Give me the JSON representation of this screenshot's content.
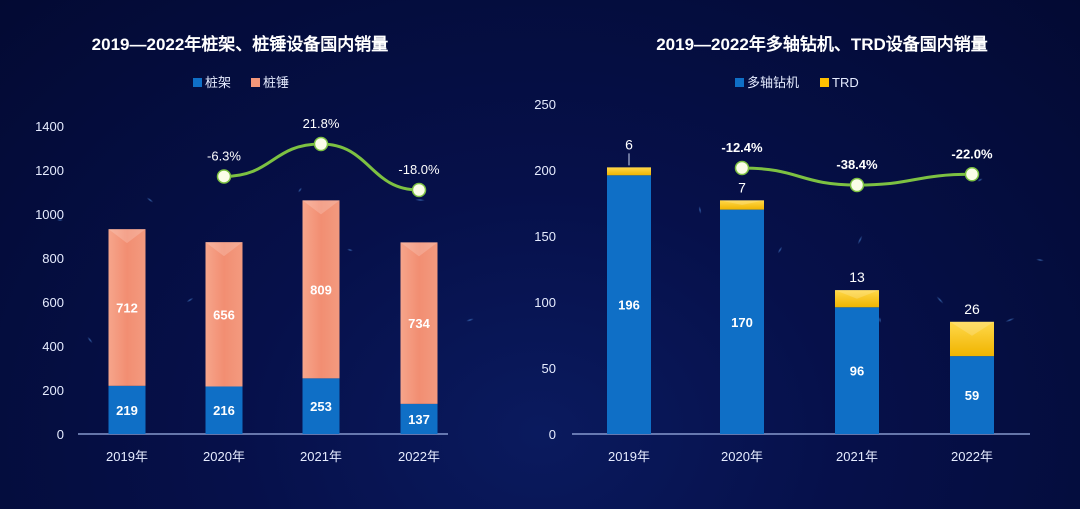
{
  "chart_data": [
    {
      "type": "bar",
      "stacked": true,
      "title": "2019—2022年桩架、桩锤设备国内销量",
      "categories": [
        "2019年",
        "2020年",
        "2021年",
        "2022年"
      ],
      "series": [
        {
          "name": "桩架",
          "color": "#0f6fc6",
          "values": [
            219,
            216,
            253,
            137
          ]
        },
        {
          "name": "桩锤",
          "color": "#f4977a",
          "values": [
            712,
            656,
            809,
            734
          ]
        }
      ],
      "growth_line": {
        "color": "#7dc142",
        "categories": [
          "2020年",
          "2021年",
          "2022年"
        ],
        "labels": [
          "-6.3%",
          "21.8%",
          "-18.0%"
        ],
        "values": [
          -6.3,
          21.8,
          -18.0
        ]
      },
      "yticks": [
        "0",
        "200",
        "400",
        "600",
        "800",
        "1000",
        "1200",
        "1400"
      ],
      "ylim": [
        0,
        1400
      ],
      "legend": "top",
      "xlabel": "",
      "ylabel": ""
    },
    {
      "type": "bar",
      "stacked": true,
      "title": "2019—2022年多轴钻机、TRD设备国内销量",
      "categories": [
        "2019年",
        "2020年",
        "2021年",
        "2022年"
      ],
      "series": [
        {
          "name": "多轴钻机",
          "color": "#0f6fc6",
          "values": [
            196,
            170,
            96,
            59
          ]
        },
        {
          "name": "TRD",
          "color": "#ffc000",
          "values": [
            6,
            7,
            13,
            26
          ]
        }
      ],
      "growth_line": {
        "color": "#7dc142",
        "categories": [
          "2020年",
          "2021年",
          "2022年"
        ],
        "labels": [
          "-12.4%",
          "-38.4%",
          "-22.0%"
        ],
        "values": [
          -12.4,
          -38.4,
          -22.0
        ]
      },
      "yticks": [
        "0",
        "50",
        "100",
        "150",
        "200",
        "250"
      ],
      "ylim": [
        0,
        250
      ],
      "legend": "top",
      "xlabel": "",
      "ylabel": ""
    }
  ]
}
